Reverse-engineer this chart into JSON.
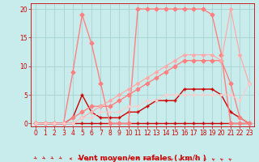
{
  "bg_color": "#c8ecec",
  "grid_color": "#a8d4d4",
  "xlabel": "Vent moyen/en rafales ( km/h )",
  "xlim": [
    -0.5,
    23.5
  ],
  "ylim": [
    -0.5,
    21
  ],
  "yticks": [
    0,
    5,
    10,
    15,
    20
  ],
  "xticks": [
    0,
    1,
    2,
    3,
    4,
    5,
    6,
    7,
    8,
    9,
    10,
    11,
    12,
    13,
    14,
    15,
    16,
    17,
    18,
    19,
    20,
    21,
    22,
    23
  ],
  "series": [
    {
      "x": [
        0,
        1,
        2,
        3,
        4,
        5,
        6,
        7,
        8,
        9,
        10,
        11,
        12,
        13,
        14,
        15,
        16,
        17,
        18,
        19,
        20,
        21,
        22,
        23
      ],
      "y": [
        0,
        0,
        0,
        0,
        0,
        0,
        0,
        0,
        0,
        0,
        0,
        0,
        0,
        0,
        0,
        0,
        0,
        0,
        0,
        0,
        0,
        0,
        0,
        0
      ],
      "color": "#cc0000",
      "lw": 1.0,
      "marker": "+",
      "ms": 3.5
    },
    {
      "x": [
        0,
        1,
        2,
        3,
        4,
        5,
        6,
        7,
        8,
        9,
        10,
        11,
        12,
        13,
        14,
        15,
        16,
        17,
        18,
        19,
        20,
        21,
        22,
        23
      ],
      "y": [
        0,
        0,
        0,
        0,
        1,
        5,
        2,
        1,
        1,
        1,
        2,
        2,
        3,
        4,
        4,
        4,
        6,
        6,
        6,
        6,
        5,
        2,
        1,
        0
      ],
      "color": "#cc0000",
      "lw": 1.0,
      "marker": "+",
      "ms": 3.5
    },
    {
      "x": [
        0,
        1,
        2,
        3,
        4,
        5,
        6,
        7,
        8,
        9,
        10,
        11,
        12,
        13,
        14,
        15,
        16,
        17,
        18,
        19,
        20,
        21,
        22,
        23
      ],
      "y": [
        0,
        0,
        0,
        0,
        9,
        19,
        14,
        7,
        0,
        0,
        0,
        20,
        20,
        20,
        20,
        20,
        20,
        20,
        20,
        19,
        12,
        0,
        0,
        0
      ],
      "color": "#ff8080",
      "lw": 1.0,
      "marker": "D",
      "ms": 2.5
    },
    {
      "x": [
        0,
        1,
        2,
        3,
        4,
        5,
        6,
        7,
        8,
        9,
        10,
        11,
        12,
        13,
        14,
        15,
        16,
        17,
        18,
        19,
        20,
        21,
        22,
        23
      ],
      "y": [
        0,
        0,
        0,
        0,
        1,
        2,
        3,
        3,
        3,
        4,
        5,
        6,
        7,
        8,
        9,
        10,
        11,
        11,
        11,
        11,
        11,
        7,
        1,
        0
      ],
      "color": "#ff8080",
      "lw": 1.0,
      "marker": "D",
      "ms": 2.5
    },
    {
      "x": [
        0,
        1,
        2,
        3,
        4,
        5,
        6,
        7,
        8,
        9,
        10,
        11,
        12,
        13,
        14,
        15,
        16,
        17,
        18,
        19,
        20,
        21,
        22,
        23
      ],
      "y": [
        0,
        0,
        0,
        0,
        0,
        1,
        2,
        3,
        4,
        5,
        6,
        7,
        8,
        9,
        10,
        11,
        12,
        12,
        12,
        12,
        11,
        20,
        12,
        7
      ],
      "color": "#ffaaaa",
      "lw": 0.9,
      "marker": "D",
      "ms": 2.0
    },
    {
      "x": [
        0,
        1,
        2,
        3,
        4,
        5,
        6,
        7,
        8,
        9,
        10,
        11,
        12,
        13,
        14,
        15,
        16,
        17,
        18,
        19,
        20,
        21,
        22,
        23
      ],
      "y": [
        0,
        0,
        0,
        0,
        0,
        1,
        1,
        2,
        2,
        2,
        3,
        3,
        4,
        4,
        5,
        5,
        5,
        5,
        5,
        5,
        5,
        5,
        4,
        7
      ],
      "color": "#ffcccc",
      "lw": 0.8,
      "marker": "D",
      "ms": 1.5
    }
  ],
  "arrow_angles": [
    45,
    45,
    45,
    45,
    -90,
    -90,
    -135,
    -135,
    -135,
    -135,
    -90,
    -45,
    -45,
    -90,
    -90,
    -90,
    -135,
    -135,
    -135,
    -90,
    -135,
    -135,
    -135,
    -135
  ],
  "arrow_color": "#cc3333",
  "xlabel_color": "#cc0000",
  "tick_color": "#cc0000",
  "label_fontsize": 6.5,
  "tick_fontsize": 5.5
}
